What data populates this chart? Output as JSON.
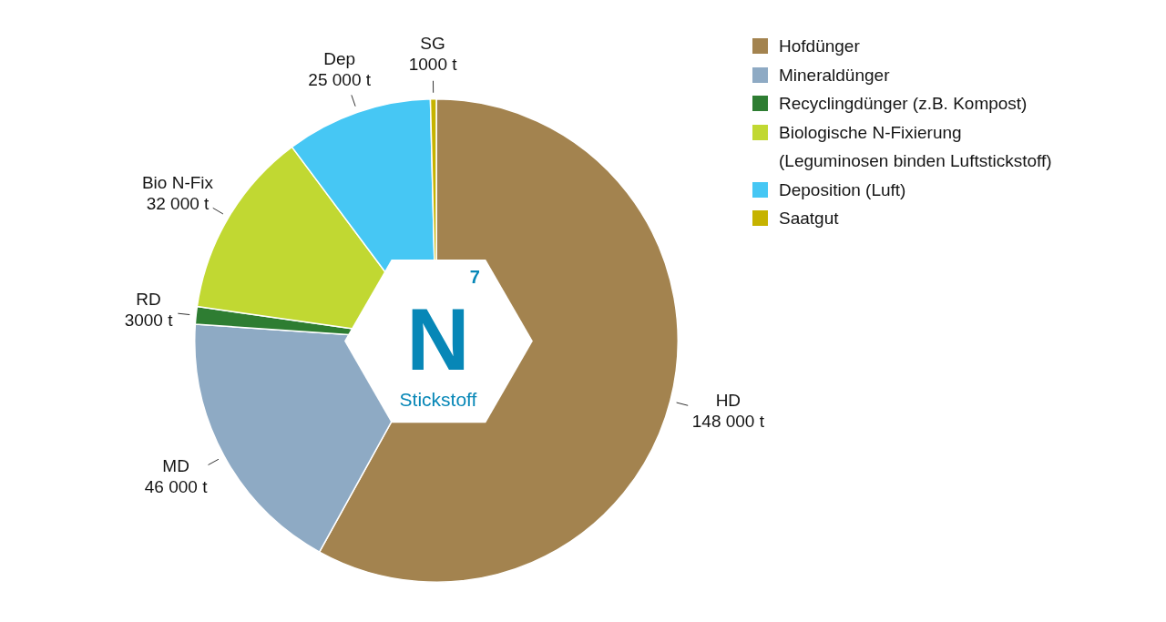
{
  "chart_data": {
    "type": "pie",
    "categories": [
      "Hofdünger",
      "Mineraldünger",
      "Recyclingdünger (z.B. Kompost)",
      "Biologische N-Fixierung (Leguminosen binden Luftstickstoff)",
      "Deposition (Luft)",
      "Saatgut"
    ],
    "values": [
      148000,
      46000,
      3000,
      32000,
      25000,
      1000
    ],
    "colors": [
      "#a3834f",
      "#8eaac4",
      "#2e7d32",
      "#c1d832",
      "#46c7f4",
      "#c6b300"
    ],
    "value_labels": [
      "HD\n148 000 t",
      "MD\n46 000 t",
      "RD\n3000 t",
      "Bio N-Fix\n32 000 t",
      "Dep\n25 000 t",
      "SG\n1000 t"
    ],
    "annotations": [
      "7",
      "N",
      "Stickstoff"
    ],
    "legend": "top right"
  }
}
